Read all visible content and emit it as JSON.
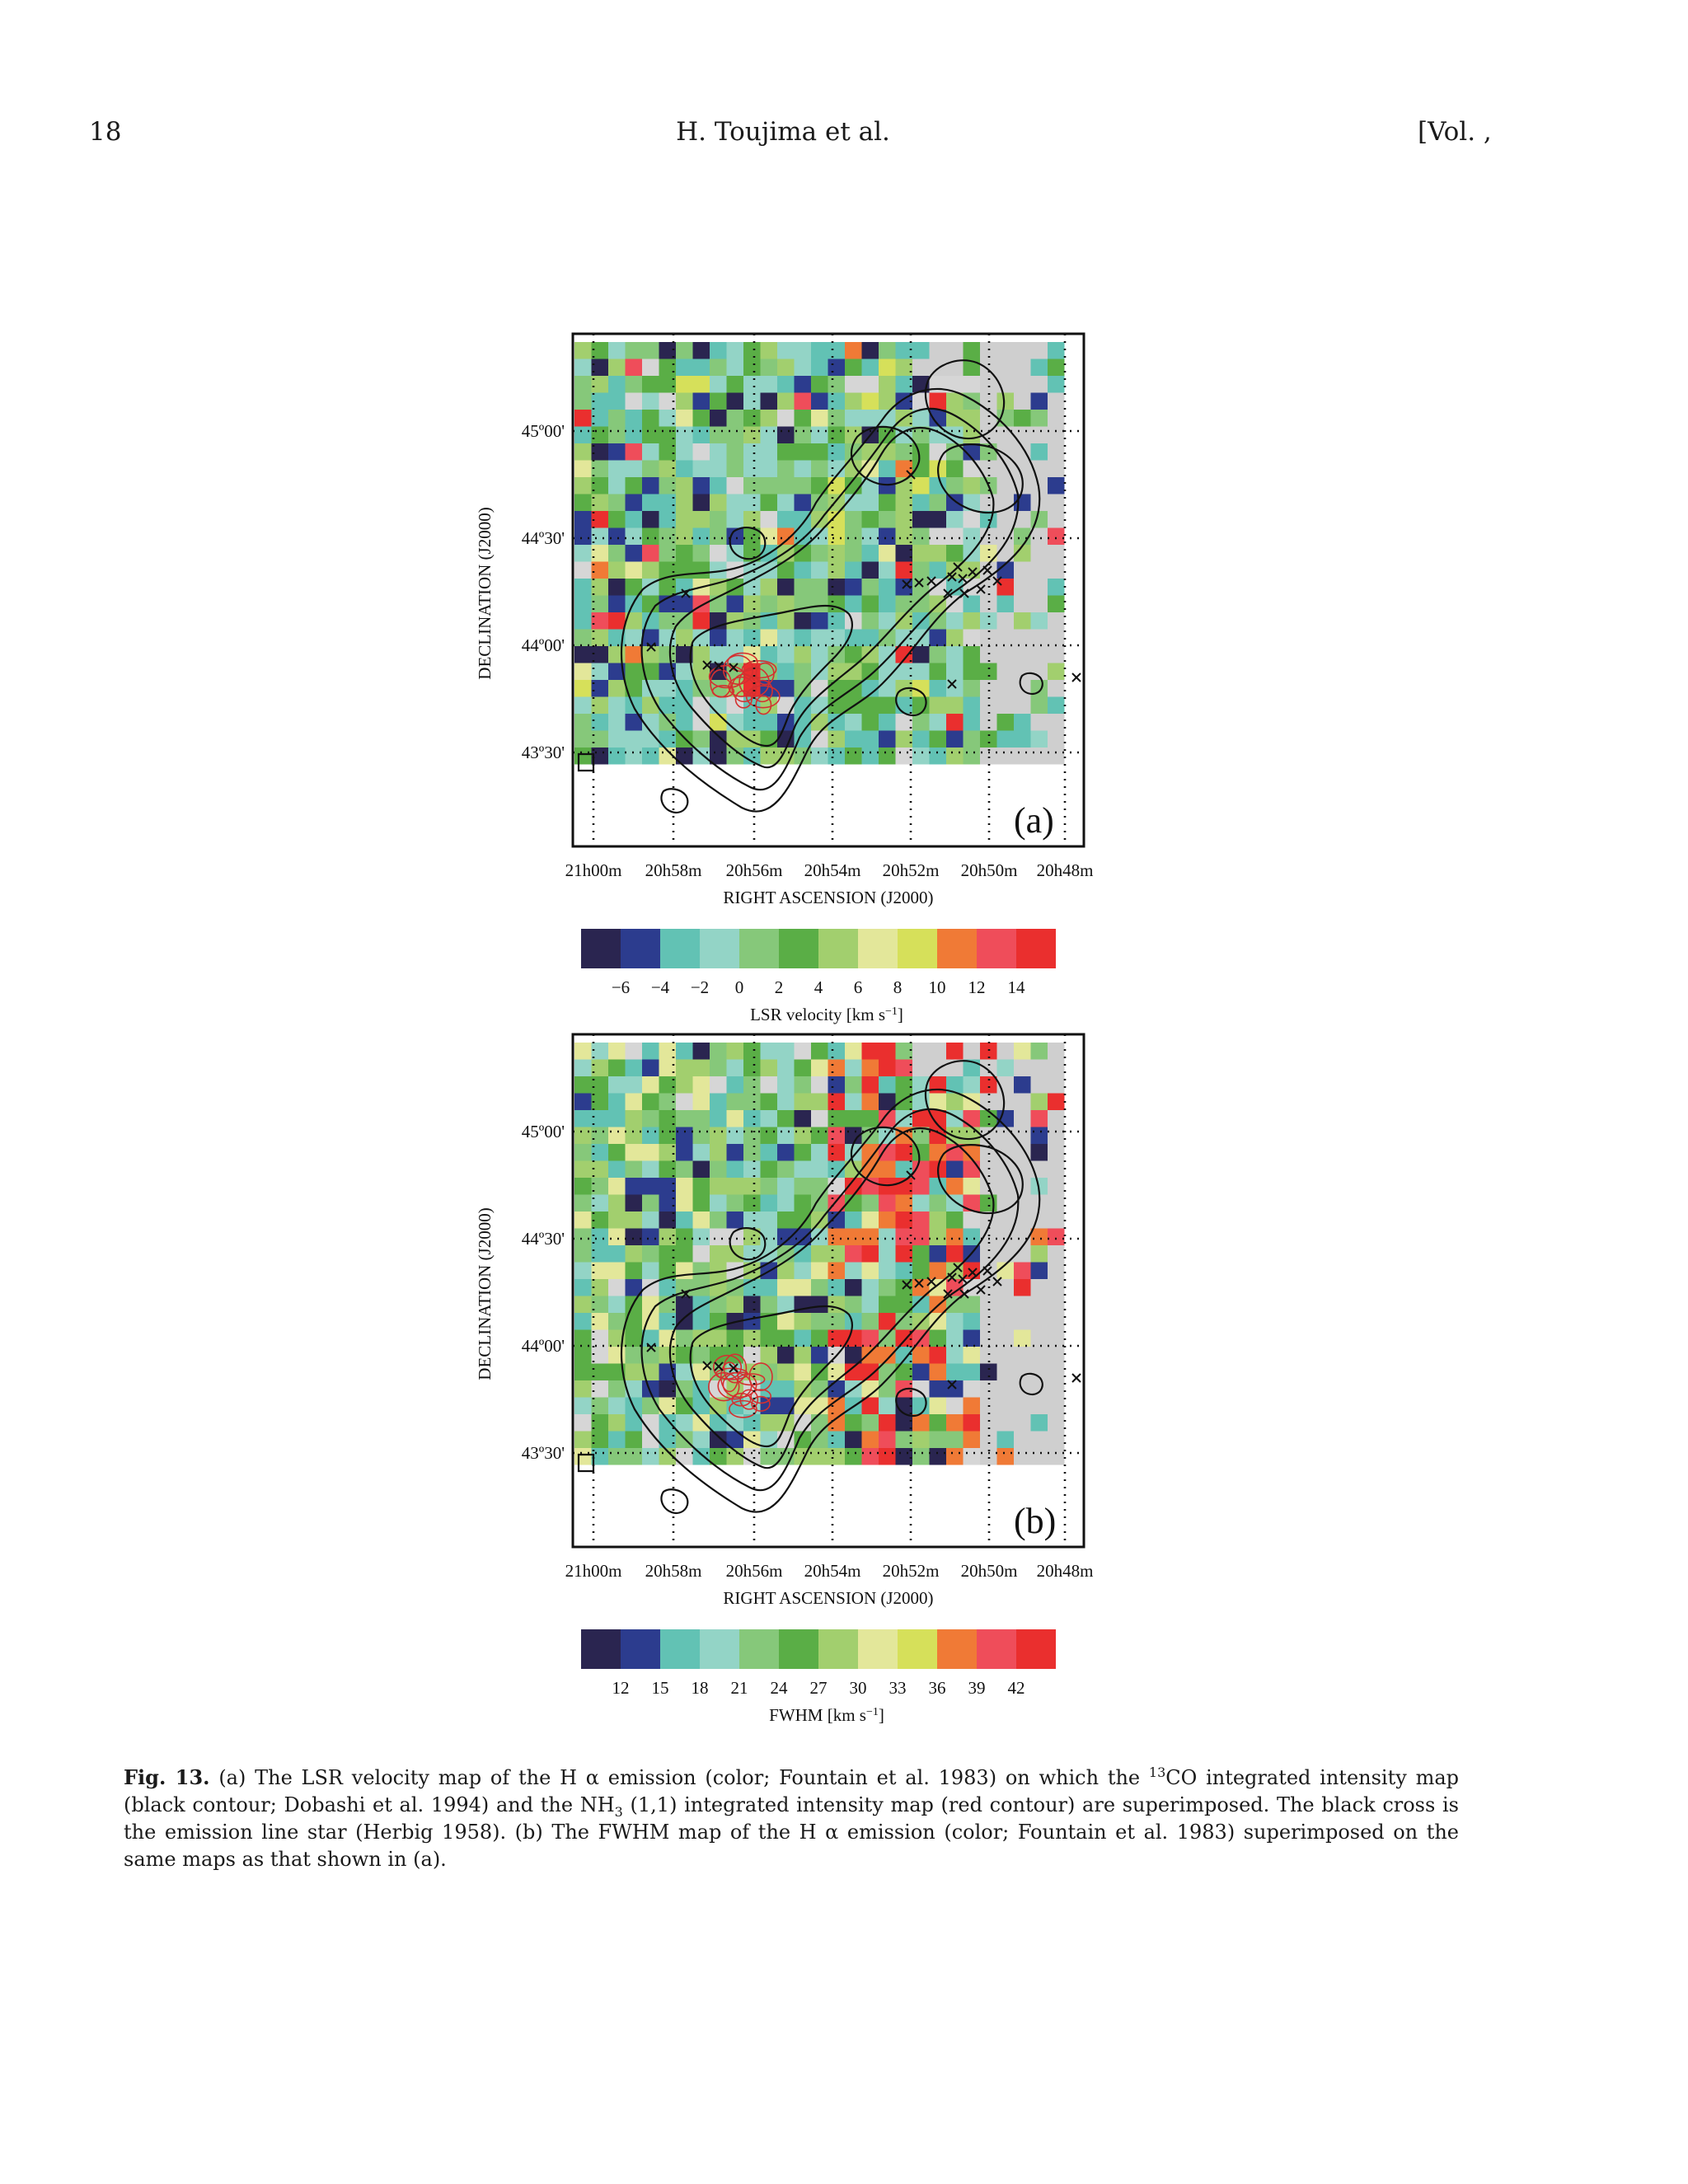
{
  "header": {
    "page_number": "18",
    "authors": "H. Toujima et al.",
    "volume": "[Vol. ,"
  },
  "figure": {
    "axis_ra_label": "RIGHT ASCENSION (J2000)",
    "axis_dec_label": "DECLINATION (J2000)",
    "ra_ticks": [
      "21h00m",
      "20h58m",
      "20h56m",
      "20h54m",
      "20h52m",
      "20h50m",
      "20h48m"
    ],
    "dec_ticks": [
      "45º00'",
      "44º30'",
      "44º00'",
      "43º30'"
    ]
  },
  "chart_data": [
    {
      "type": "heatmap",
      "panel_label": "(a)",
      "xlabel": "RIGHT ASCENSION (J2000)",
      "ylabel": "DECLINATION (J2000)",
      "x_ticks": [
        "21h00m",
        "20h58m",
        "20h56m",
        "20h54m",
        "20h52m",
        "20h50m",
        "20h48m"
      ],
      "y_ticks": [
        "45º00'",
        "44º30'",
        "44º00'",
        "43º30'"
      ],
      "colorbar": {
        "label": "LSR velocity [km s",
        "label_exp": "−1",
        "label_end": "]",
        "ticks": [
          "−6",
          "−4",
          "−2",
          "0",
          "2",
          "4",
          "6",
          "8",
          "10",
          "12",
          "14"
        ],
        "colors": [
          "#2a2550",
          "#2c3c8e",
          "#62c2b4",
          "#93d4c6",
          "#86c87a",
          "#5aae46",
          "#a2cf6e",
          "#e3e79a",
          "#d6e05a",
          "#f07a36",
          "#ef4d5a",
          "#ea2f2e"
        ]
      }
    },
    {
      "type": "heatmap",
      "panel_label": "(b)",
      "xlabel": "RIGHT ASCENSION (J2000)",
      "ylabel": "DECLINATION (J2000)",
      "x_ticks": [
        "21h00m",
        "20h58m",
        "20h56m",
        "20h54m",
        "20h52m",
        "20h50m",
        "20h48m"
      ],
      "y_ticks": [
        "45º00'",
        "44º30'",
        "44º00'",
        "43º30'"
      ],
      "colorbar": {
        "label": "FWHM [km s",
        "label_exp": "−1",
        "label_end": "]",
        "ticks": [
          "12",
          "15",
          "18",
          "21",
          "24",
          "27",
          "30",
          "33",
          "36",
          "39",
          "42"
        ],
        "colors": [
          "#2a2550",
          "#2c3c8e",
          "#62c2b4",
          "#93d4c6",
          "#86c87a",
          "#5aae46",
          "#a2cf6e",
          "#e3e79a",
          "#d6e05a",
          "#f07a36",
          "#ef4d5a",
          "#ea2f2e"
        ]
      }
    }
  ],
  "caption": {
    "label": "Fig. 13.",
    "part1": "(a) The LSR velocity map of the H α emission (color; Fountain et al. 1983) on which the ",
    "sup": "13",
    "part2": "CO integrated intensity map (black contour; Dobashi et al. 1994) and the NH",
    "sub": "3",
    "part3": " (1,1) integrated intensity map (red contour) are superimposed. The black cross is the emission line star (Herbig 1958). (b) The FWHM map of the H α emission (color; Fountain et al. 1983) superimposed on the same maps as that shown in (a)."
  }
}
